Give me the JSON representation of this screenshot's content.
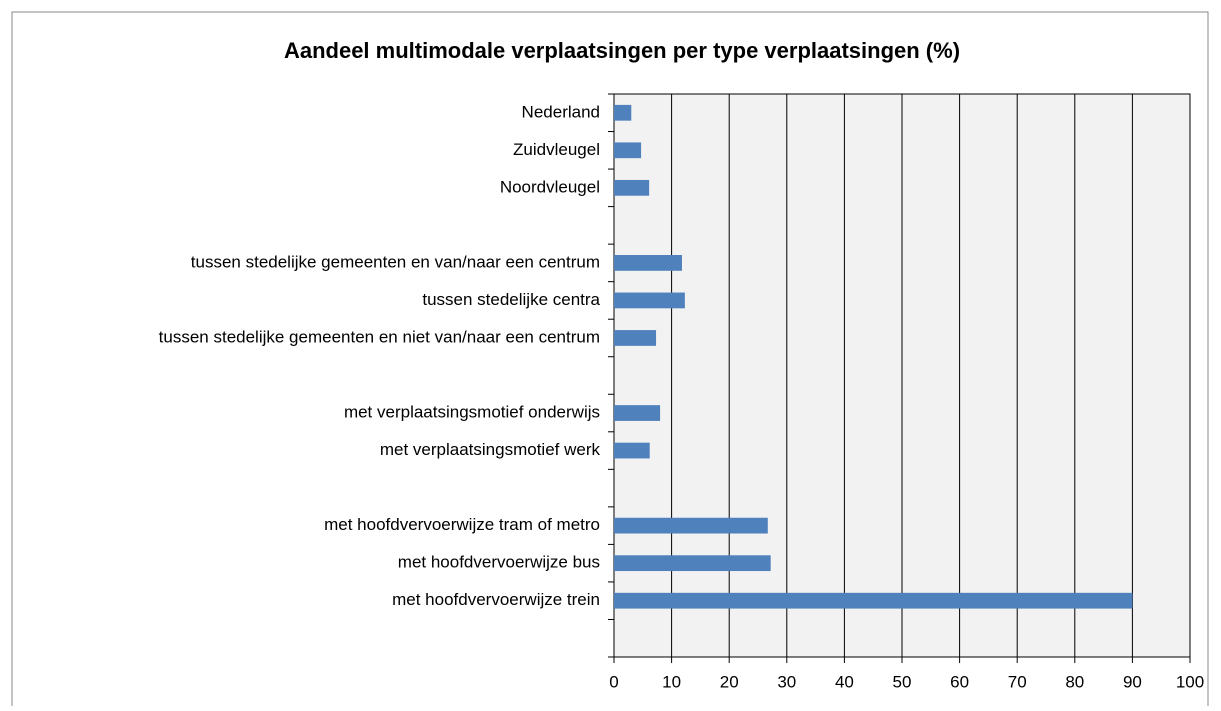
{
  "chart_data": {
    "type": "bar",
    "orientation": "horizontal",
    "title": "Aandeel multimodale verplaatsingen per type verplaatsingen (%)",
    "categories": [
      "Nederland",
      "Zuidvleugel",
      "Noordvleugel",
      null,
      "tussen stedelijke gemeenten en van/naar een centrum",
      "tussen stedelijke centra",
      "tussen stedelijke gemeenten en niet van/naar een centrum",
      null,
      "met verplaatsingsmotief onderwijs",
      "met verplaatsingsmotief werk",
      null,
      "met hoofdvervoerwijze tram of metro",
      "met hoofdvervoerwijze bus",
      "met hoofdvervoerwijze trein",
      null
    ],
    "values": [
      3.0,
      4.7,
      6.1,
      null,
      11.8,
      12.3,
      7.3,
      null,
      8.0,
      6.2,
      null,
      26.7,
      27.2,
      90.0,
      null
    ],
    "color": "#4f81bd",
    "xlim": [
      0,
      100
    ],
    "xticks": [
      0,
      10,
      20,
      30,
      40,
      50,
      60,
      70,
      80,
      90,
      100
    ],
    "grid": true
  }
}
